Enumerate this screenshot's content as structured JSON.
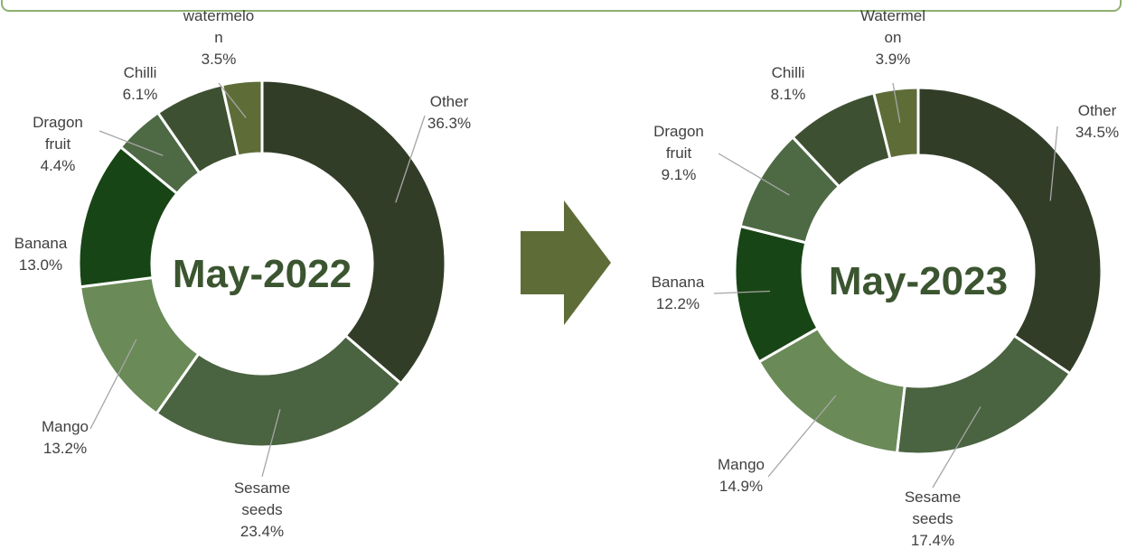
{
  "chart_data": [
    {
      "type": "donut",
      "title": "May-2022",
      "categories": [
        "Other",
        "Sesame seeds",
        "Mango",
        "Banana",
        "Dragon fruit",
        "Chilli",
        "watermelon"
      ],
      "values": [
        36.3,
        23.4,
        13.2,
        13.0,
        4.4,
        6.1,
        3.5
      ],
      "value_labels": [
        "36.3%",
        "23.4%",
        "13.2%",
        "13.0%",
        "4.4%",
        "6.1%",
        "3.5%"
      ],
      "colors": [
        "#323d28",
        "#4a6340",
        "#6a8a58",
        "#184515",
        "#4e6a45",
        "#3e5032",
        "#5e6d38"
      ]
    },
    {
      "type": "donut",
      "title": "May-2023",
      "categories": [
        "Other",
        "Sesame seeds",
        "Mango",
        "Banana",
        "Dragon fruit",
        "Chilli",
        "Watermelon"
      ],
      "values": [
        34.5,
        17.4,
        14.9,
        12.2,
        9.1,
        8.1,
        3.9
      ],
      "value_labels": [
        "34.5%",
        "17.4%",
        "14.9%",
        "12.2%",
        "9.1%",
        "8.1%",
        "3.9%"
      ],
      "colors": [
        "#323d28",
        "#4a6340",
        "#6a8a58",
        "#184515",
        "#4e6a45",
        "#3e5032",
        "#5e6d38"
      ]
    }
  ]
}
